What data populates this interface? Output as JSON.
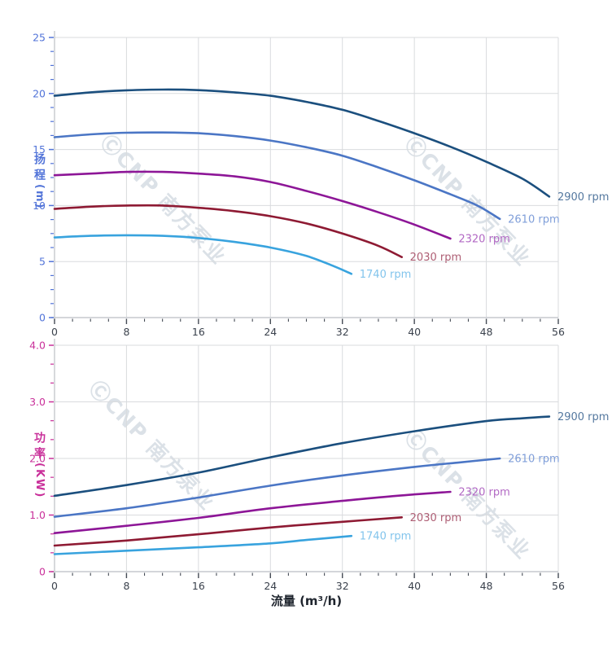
{
  "watermark": {
    "text": "ⒸCNP 南方泵业",
    "color": "#b9c5d0"
  },
  "chart_data": [
    {
      "type": "line",
      "title": "",
      "ylabel": "扬程",
      "ylabel_unit": "(m)",
      "xlabel": "",
      "xlim": [
        0,
        56
      ],
      "ylim": [
        0,
        25
      ],
      "x_major": 8,
      "x_minor": 2,
      "y_major": 5,
      "y_minor_divs": 4,
      "grid": true,
      "x_tick_labels": [
        "0",
        "8",
        "16",
        "24",
        "32",
        "40",
        "48",
        "56"
      ],
      "y_tick_labels": [
        "0",
        "5",
        "10",
        "15",
        "20",
        "25"
      ],
      "tick_color": "#5173d8",
      "series": [
        {
          "name": "2900 rpm",
          "color": "#1b4f7e",
          "label_color": "#54789f",
          "points": [
            [
              0,
              19.8
            ],
            [
              4,
              20.1
            ],
            [
              8,
              20.28
            ],
            [
              12,
              20.35
            ],
            [
              16,
              20.3
            ],
            [
              20,
              20.1
            ],
            [
              24,
              19.8
            ],
            [
              28,
              19.25
            ],
            [
              32,
              18.55
            ],
            [
              36,
              17.55
            ],
            [
              40,
              16.45
            ],
            [
              44,
              15.25
            ],
            [
              48,
              13.9
            ],
            [
              52,
              12.4
            ],
            [
              55,
              10.8
            ]
          ]
        },
        {
          "name": "2610 rpm",
          "color": "#4b76c5",
          "label_color": "#7f9ed9",
          "points": [
            [
              0,
              16.1
            ],
            [
              4,
              16.35
            ],
            [
              8,
              16.5
            ],
            [
              12,
              16.52
            ],
            [
              16,
              16.45
            ],
            [
              20,
              16.2
            ],
            [
              24,
              15.8
            ],
            [
              28,
              15.2
            ],
            [
              32,
              14.45
            ],
            [
              36,
              13.4
            ],
            [
              40,
              12.25
            ],
            [
              44,
              11.0
            ],
            [
              47,
              10.0
            ],
            [
              49.5,
              8.8
            ]
          ]
        },
        {
          "name": "2320 rpm",
          "color": "#8d1697",
          "label_color": "#b269c4",
          "points": [
            [
              0,
              12.7
            ],
            [
              4,
              12.85
            ],
            [
              8,
              13.0
            ],
            [
              12,
              13.0
            ],
            [
              16,
              12.85
            ],
            [
              20,
              12.6
            ],
            [
              24,
              12.1
            ],
            [
              28,
              11.3
            ],
            [
              32,
              10.4
            ],
            [
              36,
              9.4
            ],
            [
              40,
              8.3
            ],
            [
              44,
              7.05
            ]
          ]
        },
        {
          "name": "2030 rpm",
          "color": "#8e1a33",
          "label_color": "#ae5e74",
          "points": [
            [
              0,
              9.7
            ],
            [
              4,
              9.9
            ],
            [
              8,
              10.0
            ],
            [
              12,
              10.0
            ],
            [
              16,
              9.8
            ],
            [
              20,
              9.5
            ],
            [
              24,
              9.05
            ],
            [
              28,
              8.4
            ],
            [
              32,
              7.5
            ],
            [
              36,
              6.4
            ],
            [
              38.6,
              5.4
            ]
          ]
        },
        {
          "name": "1740 rpm",
          "color": "#38a3de",
          "label_color": "#82c4ec",
          "points": [
            [
              0,
              7.15
            ],
            [
              4,
              7.3
            ],
            [
              8,
              7.35
            ],
            [
              12,
              7.3
            ],
            [
              16,
              7.1
            ],
            [
              20,
              6.75
            ],
            [
              24,
              6.25
            ],
            [
              28,
              5.5
            ],
            [
              31,
              4.6
            ],
            [
              33,
              3.9
            ]
          ]
        }
      ]
    },
    {
      "type": "line",
      "title": "",
      "ylabel": "功率",
      "ylabel_unit": "(KW)",
      "xlabel": "流量 (m³/h)",
      "xlim": [
        0,
        56
      ],
      "ylim": [
        0,
        4
      ],
      "x_major": 8,
      "x_minor": 2,
      "y_major": 1,
      "y_minor_divs": 3,
      "grid": true,
      "x_tick_labels": [
        "0",
        "8",
        "16",
        "24",
        "32",
        "40",
        "48",
        "56"
      ],
      "y_tick_labels": [
        "0",
        "1.0",
        "2.0",
        "3.0",
        "4.0"
      ],
      "tick_color": "#c9309a",
      "series": [
        {
          "name": "2900 rpm",
          "color": "#1b4f7e",
          "label_color": "#54789f",
          "points": [
            [
              0,
              1.34
            ],
            [
              8,
              1.53
            ],
            [
              16,
              1.75
            ],
            [
              24,
              2.02
            ],
            [
              32,
              2.27
            ],
            [
              40,
              2.48
            ],
            [
              48,
              2.66
            ],
            [
              52,
              2.71
            ],
            [
              55,
              2.74
            ]
          ]
        },
        {
          "name": "2610 rpm",
          "color": "#4b76c5",
          "label_color": "#7f9ed9",
          "points": [
            [
              0,
              0.97
            ],
            [
              8,
              1.12
            ],
            [
              16,
              1.31
            ],
            [
              24,
              1.52
            ],
            [
              32,
              1.7
            ],
            [
              40,
              1.85
            ],
            [
              45,
              1.93
            ],
            [
              49.5,
              2.0
            ]
          ]
        },
        {
          "name": "2320 rpm",
          "color": "#8d1697",
          "label_color": "#b269c4",
          "points": [
            [
              0,
              0.68
            ],
            [
              8,
              0.81
            ],
            [
              16,
              0.95
            ],
            [
              24,
              1.12
            ],
            [
              32,
              1.25
            ],
            [
              38,
              1.34
            ],
            [
              44,
              1.41
            ]
          ]
        },
        {
          "name": "2030 rpm",
          "color": "#8e1a33",
          "label_color": "#ae5e74",
          "points": [
            [
              0,
              0.46
            ],
            [
              8,
              0.55
            ],
            [
              16,
              0.66
            ],
            [
              24,
              0.78
            ],
            [
              32,
              0.88
            ],
            [
              38.6,
              0.96
            ]
          ]
        },
        {
          "name": "1740 rpm",
          "color": "#38a3de",
          "label_color": "#82c4ec",
          "points": [
            [
              0,
              0.31
            ],
            [
              8,
              0.37
            ],
            [
              16,
              0.43
            ],
            [
              24,
              0.5
            ],
            [
              28,
              0.56
            ],
            [
              33,
              0.63
            ]
          ]
        }
      ]
    }
  ]
}
